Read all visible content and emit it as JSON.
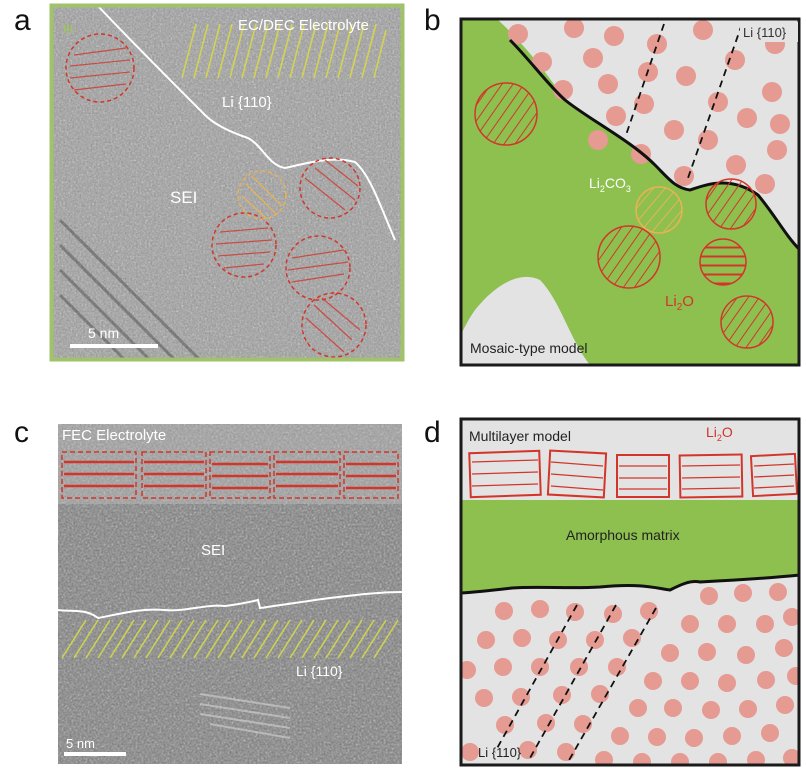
{
  "panels": {
    "a": {
      "letter": "a",
      "corner_tag": "III",
      "electrolyte_label": "EC/DEC Electrolyte",
      "li_label": "Li {110}",
      "sei_label": "SEI",
      "scale_label": "5 nm"
    },
    "b": {
      "letter": "b",
      "li_label": "Li {110}",
      "li2co3_label": "Li2CO3",
      "li2co3_parts": [
        "Li",
        "2",
        "CO",
        "3"
      ],
      "li2o_label": "Li2O",
      "li2o_parts": [
        "Li",
        "2",
        "O"
      ],
      "model_label": "Mosaic-type model"
    },
    "c": {
      "letter": "c",
      "electrolyte_label": "FEC Electrolyte",
      "sei_label": "SEI",
      "li_label": "Li {110}",
      "scale_label": "5 nm"
    },
    "d": {
      "letter": "d",
      "model_label": "Multilayer model",
      "li2o_label": "Li2O",
      "li2o_parts": [
        "Li",
        "2",
        "O"
      ],
      "matrix_label": "Amorphous matrix",
      "li_label": "Li {110}"
    }
  },
  "colors": {
    "tem_frame": "#9fc26b",
    "sei_green": "#8dc04f",
    "li_gray": "#e3e3e3",
    "li_atom": "#e59a92",
    "li2o_red": "#d2362b",
    "li2co3_orange": "#eab255",
    "lattice_yellow": "#d6d84a",
    "boundary_white": "#ffffff",
    "border_dark": "#1a1a1a"
  }
}
